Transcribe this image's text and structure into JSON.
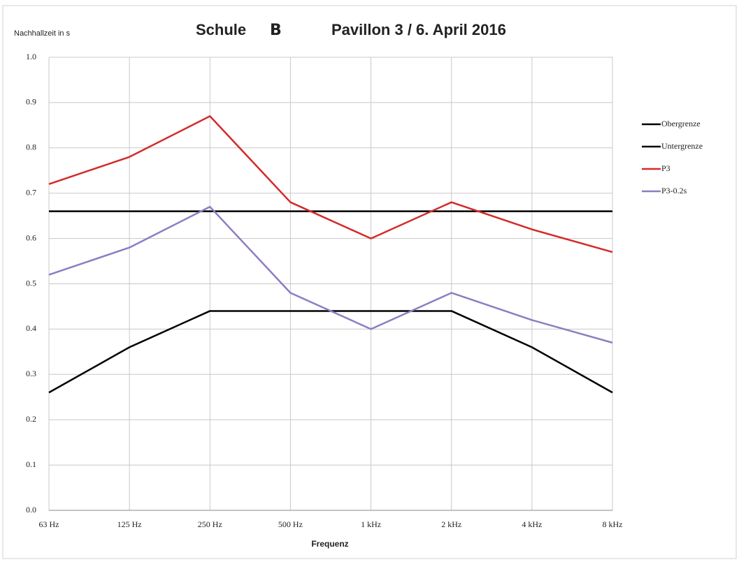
{
  "chart_data": {
    "type": "line",
    "title": [
      "Schule",
      "B",
      "Pavillon 3 / 6. April 2016"
    ],
    "y_label": "Nachhallzeit in s",
    "x_label": "Frequenz",
    "categories": [
      "63 Hz",
      "125 Hz",
      "250 Hz",
      "500 Hz",
      "1 kHz",
      "2 kHz",
      "4 kHz",
      "8 kHz"
    ],
    "series": [
      {
        "name": "Obergrenze",
        "color": "#000000",
        "values": [
          0.66,
          0.66,
          0.66,
          0.66,
          0.66,
          0.66,
          0.66,
          0.66
        ]
      },
      {
        "name": "Untergrenze",
        "color": "#000000",
        "values": [
          0.26,
          0.36,
          0.44,
          0.44,
          0.44,
          0.44,
          0.36,
          0.26
        ]
      },
      {
        "name": "P3",
        "color": "#d42a2a",
        "values": [
          0.72,
          0.78,
          0.87,
          0.68,
          0.6,
          0.68,
          0.62,
          0.57
        ]
      },
      {
        "name": "P3-0.2s",
        "color": "#8e7cc3",
        "values": [
          0.52,
          0.58,
          0.67,
          0.48,
          0.4,
          0.48,
          0.42,
          0.37
        ]
      }
    ],
    "ylim": [
      0,
      1
    ],
    "yticks": [
      {
        "value": 0,
        "label": "0.0"
      },
      0.1,
      0.2,
      0.3,
      0.4,
      0.5,
      0.6,
      0.7,
      0.8,
      0.9,
      {
        "value": 1,
        "label": "1.0"
      }
    ],
    "grid": true,
    "legend": "right"
  }
}
